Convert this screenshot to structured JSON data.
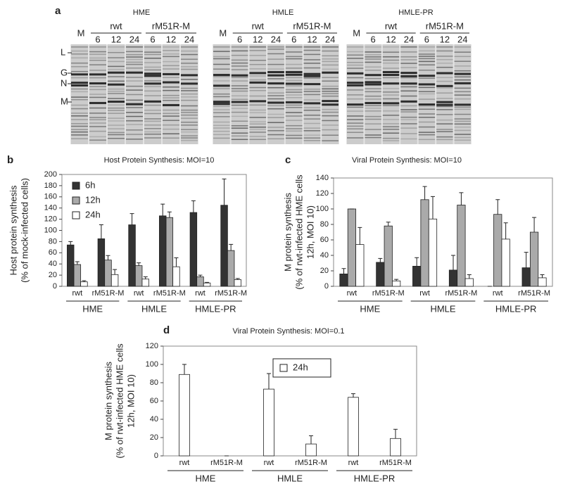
{
  "panel_a": {
    "label": "a",
    "gels": [
      {
        "name": "HME",
        "mock": "M",
        "groups": [
          {
            "name": "rwt",
            "times": [
              6,
              12,
              24
            ]
          },
          {
            "name": "rM51R-M",
            "times": [
              6,
              12,
              24
            ]
          }
        ]
      },
      {
        "name": "HMLE",
        "mock": "M",
        "groups": [
          {
            "name": "rwt",
            "times": [
              6,
              12,
              24
            ]
          },
          {
            "name": "rM51R-M",
            "times": [
              6,
              12,
              24
            ]
          }
        ]
      },
      {
        "name": "HMLE-PR",
        "mock": "M",
        "groups": [
          {
            "name": "rwt",
            "times": [
              6,
              12,
              24
            ]
          },
          {
            "name": "rM51R-M",
            "times": [
              6,
              12,
              24
            ]
          }
        ]
      }
    ],
    "markers": [
      "L",
      "G",
      "N",
      "M"
    ]
  },
  "chart_data": [
    {
      "type": "bar",
      "panel_label": "b",
      "title": "Host Protein Synthesis: MOI=10",
      "ylabel": [
        "Host protein synthesis",
        "(% of mock-infected cells)"
      ],
      "categories": [
        "rwt",
        "rM51R-M",
        "rwt",
        "rM51R-M",
        "rwt",
        "rM51R-M"
      ],
      "groups": [
        "HME",
        "HMLE",
        "HMLE-PR"
      ],
      "series": [
        {
          "name": "6h",
          "color": "#333333",
          "values": [
            74,
            85,
            110,
            126,
            132,
            145
          ],
          "errors": [
            6,
            25,
            20,
            21,
            21,
            47
          ]
        },
        {
          "name": "12h",
          "color": "#aaaaaa",
          "values": [
            39,
            47,
            37,
            123,
            17,
            64
          ],
          "errors": [
            5,
            8,
            5,
            10,
            3,
            11
          ]
        },
        {
          "name": "24h",
          "color": "#ffffff",
          "values": [
            8,
            21,
            13,
            35,
            6,
            12
          ],
          "errors": [
            2,
            9,
            4,
            16,
            1,
            2
          ]
        }
      ],
      "ylim": [
        0,
        200
      ],
      "yticks": [
        0,
        20,
        40,
        60,
        80,
        100,
        120,
        140,
        160,
        180,
        200
      ],
      "legend": "upper left"
    },
    {
      "type": "bar",
      "panel_label": "c",
      "title": "Viral Protein Synthesis: MOI=10",
      "ylabel": [
        "M protein synthesis",
        "(% of rwt-infected HME cells",
        "12h, MOI 10)"
      ],
      "categories": [
        "rwt",
        "rM51R-M",
        "rwt",
        "rM51R-M",
        "rwt",
        "rM51R-M"
      ],
      "groups": [
        "HME",
        "HMLE",
        "HMLE-PR"
      ],
      "series": [
        {
          "color": "#333333",
          "values": [
            16,
            31,
            26,
            21,
            0,
            24
          ],
          "errors": [
            7,
            5,
            11,
            19,
            0,
            20
          ]
        },
        {
          "color": "#aaaaaa",
          "values": [
            100,
            78,
            112,
            105,
            93,
            70
          ],
          "errors": [
            0,
            5,
            17,
            16,
            19,
            19
          ]
        },
        {
          "color": "#ffffff",
          "values": [
            54,
            7,
            87,
            10,
            61,
            11
          ],
          "errors": [
            22,
            2,
            29,
            5,
            21,
            4
          ]
        }
      ],
      "ylim": [
        0,
        140
      ],
      "yticks": [
        0,
        20,
        40,
        60,
        80,
        100,
        120,
        140
      ]
    },
    {
      "type": "bar",
      "panel_label": "d",
      "title": "Viral Protein Synthesis: MOI=0.1",
      "ylabel": [
        "M protein synthesis",
        "(% of rwt-infected HME cells",
        "12h, MOI 10)"
      ],
      "categories": [
        "rwt",
        "rM51R-M",
        "rwt",
        "rM51R-M",
        "rwt",
        "rM51R-M"
      ],
      "groups": [
        "HME",
        "HMLE",
        "HMLE-PR"
      ],
      "series": [
        {
          "name": "24h",
          "color": "#ffffff",
          "values": [
            89,
            0,
            73,
            13,
            64,
            19
          ],
          "errors": [
            11,
            0,
            17,
            9,
            4,
            10
          ]
        }
      ],
      "ylim": [
        0,
        120
      ],
      "yticks": [
        0,
        20,
        40,
        60,
        80,
        100,
        120
      ],
      "legend": "upper center"
    }
  ]
}
